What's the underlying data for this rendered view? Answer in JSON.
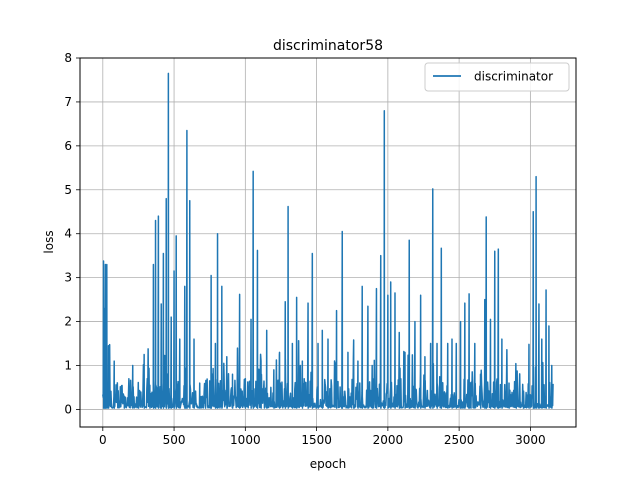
{
  "chart_data": {
    "type": "line",
    "title": "discriminator58",
    "xlabel": "epoch",
    "ylabel": "loss",
    "xlim": [
      -160,
      3320
    ],
    "ylim": [
      -0.4,
      8.0
    ],
    "x_ticks": [
      0,
      500,
      1000,
      1500,
      2000,
      2500,
      3000
    ],
    "y_ticks": [
      0,
      1,
      2,
      3,
      4,
      5,
      6,
      7,
      8
    ],
    "grid": true,
    "legend_position": "top-right",
    "series": [
      {
        "name": "discriminator",
        "color": "#1f77b4",
        "x_range": [
          0,
          3160
        ],
        "baseline": 0.03,
        "noise_amplitude": 0.22,
        "spikes": [
          [
            5,
            3.38
          ],
          [
            12,
            2.3
          ],
          [
            18,
            3.3
          ],
          [
            28,
            3.3
          ],
          [
            40,
            1.45
          ],
          [
            80,
            1.1
          ],
          [
            150,
            0.3
          ],
          [
            210,
            1.0
          ],
          [
            250,
            0.25
          ],
          [
            290,
            1.25
          ],
          [
            330,
            0.55
          ],
          [
            355,
            3.3
          ],
          [
            370,
            4.3
          ],
          [
            390,
            4.4
          ],
          [
            410,
            2.4
          ],
          [
            425,
            3.55
          ],
          [
            445,
            4.8
          ],
          [
            460,
            7.65
          ],
          [
            480,
            2.1
          ],
          [
            500,
            3.15
          ],
          [
            515,
            3.95
          ],
          [
            540,
            1.6
          ],
          [
            575,
            2.8
          ],
          [
            590,
            6.35
          ],
          [
            610,
            4.75
          ],
          [
            640,
            1.6
          ],
          [
            680,
            0.6
          ],
          [
            720,
            0.45
          ],
          [
            760,
            3.05
          ],
          [
            790,
            1.5
          ],
          [
            805,
            4.0
          ],
          [
            835,
            2.8
          ],
          [
            870,
            1.2
          ],
          [
            910,
            0.8
          ],
          [
            960,
            2.62
          ],
          [
            1000,
            0.7
          ],
          [
            1040,
            2.05
          ],
          [
            1055,
            5.42
          ],
          [
            1085,
            3.62
          ],
          [
            1110,
            1.1
          ],
          [
            1150,
            1.8
          ],
          [
            1200,
            0.9
          ],
          [
            1240,
            1.3
          ],
          [
            1280,
            2.45
          ],
          [
            1300,
            4.62
          ],
          [
            1330,
            1.5
          ],
          [
            1360,
            2.55
          ],
          [
            1400,
            1.1
          ],
          [
            1440,
            2.42
          ],
          [
            1470,
            3.55
          ],
          [
            1510,
            1.5
          ],
          [
            1540,
            1.8
          ],
          [
            1580,
            1.6
          ],
          [
            1640,
            2.25
          ],
          [
            1680,
            4.05
          ],
          [
            1720,
            1.3
          ],
          [
            1760,
            1.58
          ],
          [
            1790,
            1.1
          ],
          [
            1820,
            2.8
          ],
          [
            1860,
            2.35
          ],
          [
            1890,
            1.0
          ],
          [
            1920,
            2.75
          ],
          [
            1950,
            3.5
          ],
          [
            1975,
            6.8
          ],
          [
            2000,
            2.6
          ],
          [
            2020,
            2.9
          ],
          [
            2050,
            2.65
          ],
          [
            2080,
            1.75
          ],
          [
            2120,
            1.3
          ],
          [
            2150,
            3.85
          ],
          [
            2190,
            2.0
          ],
          [
            2230,
            2.6
          ],
          [
            2260,
            1.2
          ],
          [
            2300,
            1.5
          ],
          [
            2315,
            5.02
          ],
          [
            2345,
            1.5
          ],
          [
            2375,
            3.67
          ],
          [
            2420,
            1.5
          ],
          [
            2450,
            1.6
          ],
          [
            2480,
            1.5
          ],
          [
            2510,
            2.0
          ],
          [
            2540,
            2.42
          ],
          [
            2570,
            2.63
          ],
          [
            2610,
            1.5
          ],
          [
            2650,
            0.8
          ],
          [
            2680,
            2.5
          ],
          [
            2690,
            4.38
          ],
          [
            2720,
            2.05
          ],
          [
            2750,
            3.6
          ],
          [
            2775,
            3.65
          ],
          [
            2800,
            1.6
          ],
          [
            2850,
            0.6
          ],
          [
            2900,
            0.3
          ],
          [
            2950,
            0.3
          ],
          [
            2990,
            1.48
          ],
          [
            3020,
            4.5
          ],
          [
            3040,
            5.3
          ],
          [
            3060,
            2.4
          ],
          [
            3080,
            1.6
          ],
          [
            3110,
            2.72
          ],
          [
            3130,
            1.9
          ],
          [
            3150,
            1.0
          ]
        ]
      }
    ]
  }
}
